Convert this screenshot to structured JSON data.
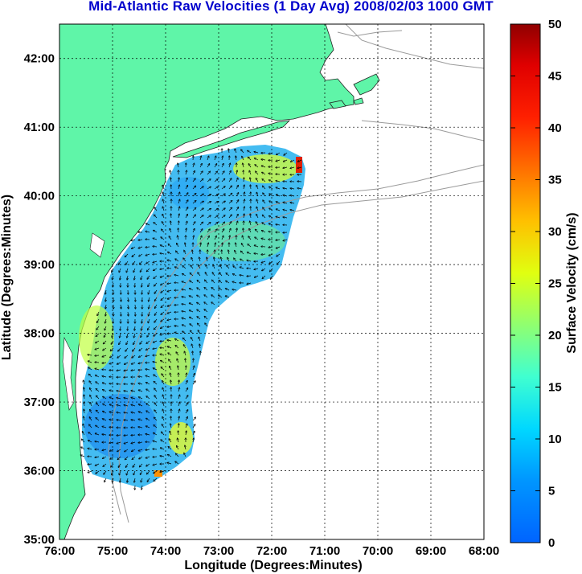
{
  "title": "Mid-Atlantic Raw Velocities (1 Day Avg) 2008/02/03 1000 GMT",
  "x_axis": {
    "label": "Longitude (Degrees:Minutes)",
    "ticks": [
      "76:00",
      "75:00",
      "74:00",
      "73:00",
      "72:00",
      "71:00",
      "70:00",
      "69:00",
      "68:00"
    ],
    "range": [
      -76,
      -68
    ]
  },
  "y_axis": {
    "label": "Latitude (Degrees:Minutes)",
    "ticks": [
      "35:00",
      "36:00",
      "37:00",
      "38:00",
      "39:00",
      "40:00",
      "41:00",
      "42:00"
    ],
    "range": [
      35,
      42.5
    ]
  },
  "colorbar": {
    "label": "Surface Velocity (cm/s)",
    "ticks": [
      "0",
      "5",
      "10",
      "15",
      "20",
      "25",
      "30",
      "35",
      "40",
      "45",
      "50"
    ],
    "range": [
      0,
      50
    ],
    "colormap": "jet"
  },
  "colors": {
    "land": "#5ff5a8",
    "title": "#0000cc",
    "coast_contour": "#9a9a9a",
    "grid": "#000000"
  },
  "grid": true
}
